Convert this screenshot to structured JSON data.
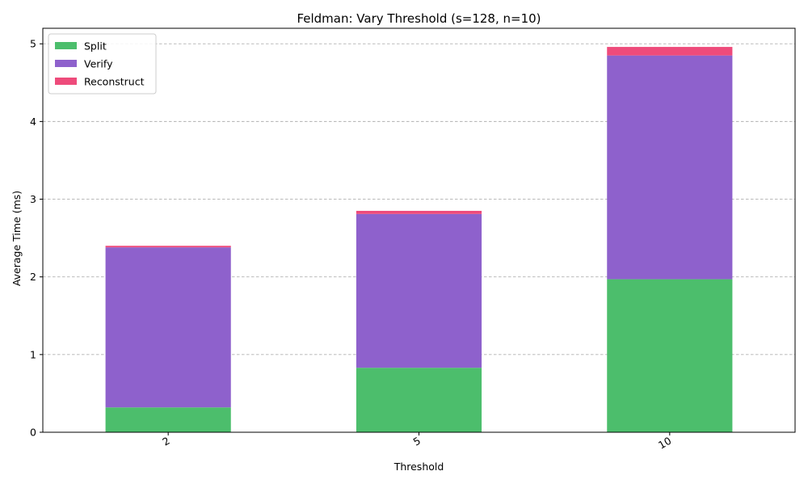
{
  "chart_data": {
    "type": "bar",
    "stacked": true,
    "title": "Feldman: Vary Threshold (s=128, n=10)",
    "xlabel": "Threshold",
    "ylabel": "Average Time (ms)",
    "categories": [
      "2",
      "5",
      "10"
    ],
    "series": [
      {
        "name": "Split",
        "color": "#4cbe6c",
        "values": [
          0.32,
          0.83,
          1.97
        ]
      },
      {
        "name": "Verify",
        "color": "#8e61cc",
        "values": [
          2.06,
          1.98,
          2.88
        ]
      },
      {
        "name": "Reconstruct",
        "color": "#ee4b7b",
        "values": [
          0.02,
          0.04,
          0.11
        ]
      }
    ],
    "ylim": [
      0,
      5.2
    ],
    "yticks": [
      0,
      1,
      2,
      3,
      4,
      5
    ],
    "grid": "y-dashed",
    "legend_position": "top-left"
  }
}
